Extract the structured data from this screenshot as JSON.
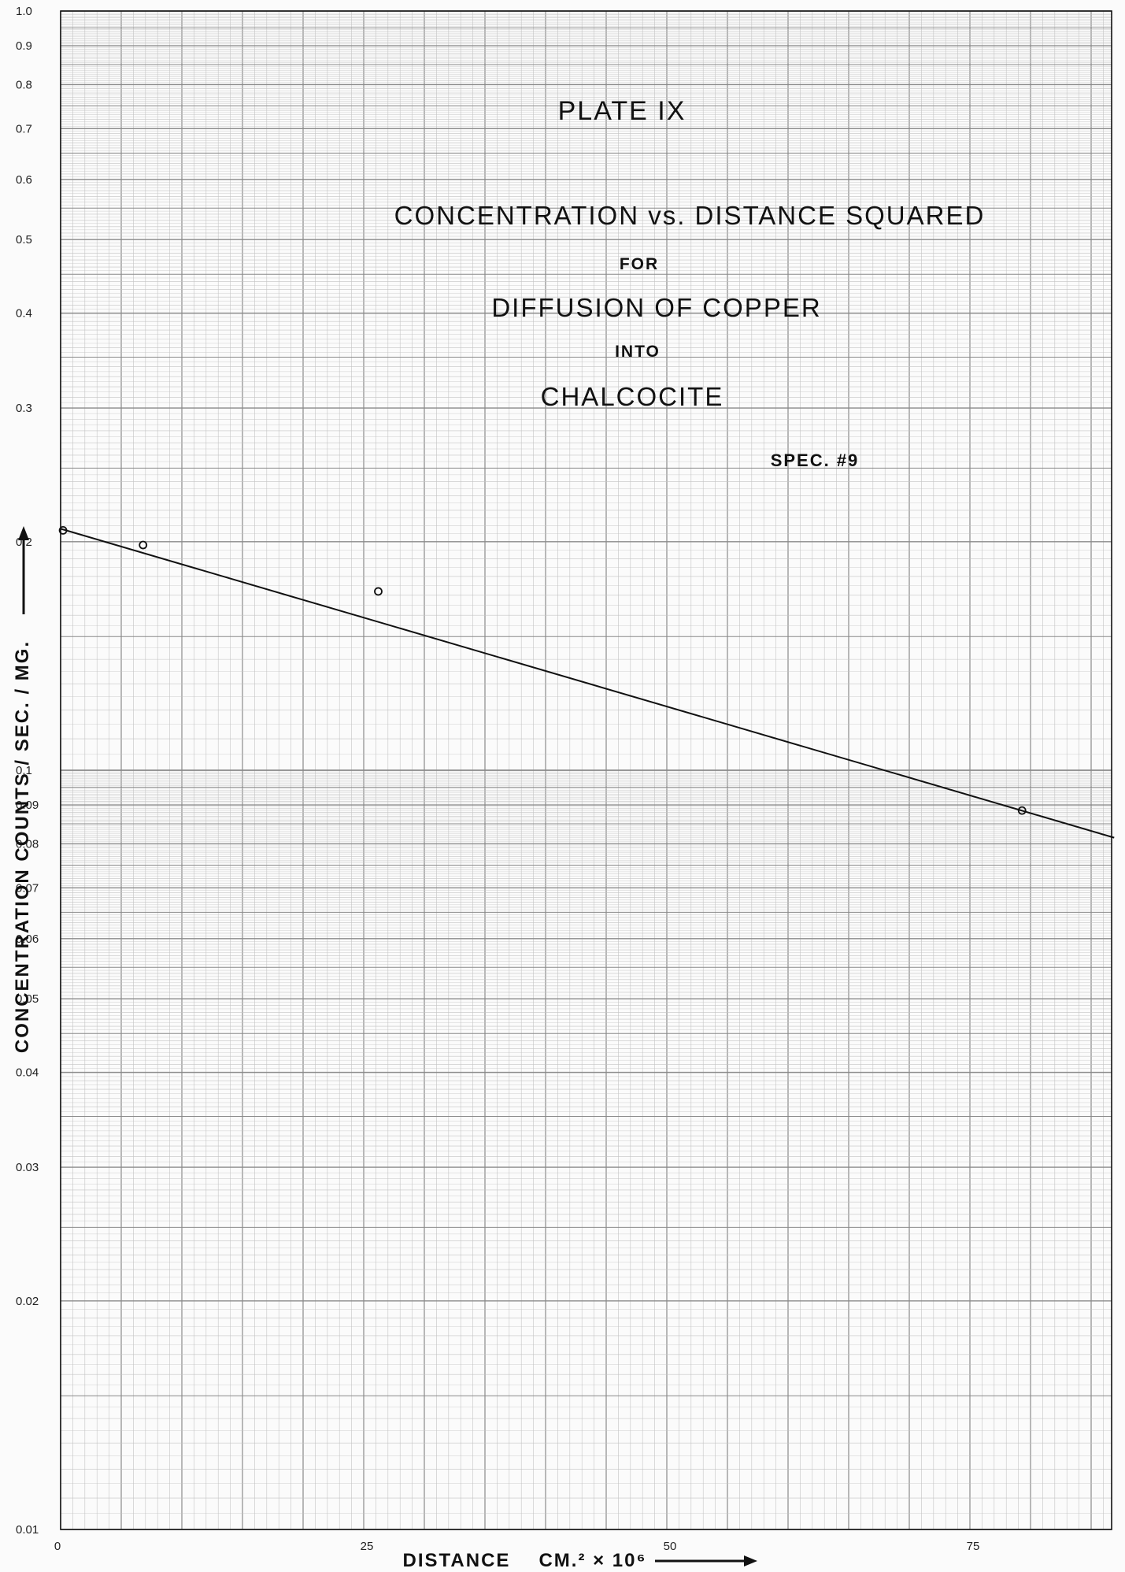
{
  "chart_data": {
    "type": "line",
    "y_scale": "log",
    "title_lines": [
      "PLATE IX",
      "CONCENTRATION vs. DISTANCE SQUARED",
      "FOR",
      "DIFFUSION OF COPPER",
      "INTO",
      "CHALCOCITE"
    ],
    "spec_label": "SPEC. #9",
    "xlabel": "DISTANCE",
    "xlabel_units": "CM.² × 10⁶",
    "ylabel": "CONCENTRATION   COUNTS / SEC. / MG.",
    "xlim": [
      0,
      87
    ],
    "ylim": [
      0.01,
      1.0
    ],
    "x_ticks": [
      0,
      25,
      50,
      75
    ],
    "x_tick_labels": [
      "0",
      "25",
      "50",
      "75"
    ],
    "y_ticks": [
      1.0,
      0.9,
      0.8,
      0.7,
      0.6,
      0.5,
      0.4,
      0.3,
      0.2,
      0.1,
      0.09,
      0.08,
      0.07,
      0.06,
      0.05,
      0.04,
      0.03,
      0.02,
      0.01
    ],
    "y_tick_labels": [
      "1.0",
      "0.9",
      "0.8",
      "0.7",
      "0.6",
      "0.5",
      "0.4",
      "0.3",
      "0.2",
      "0.1",
      "0.09",
      "0.08",
      "0.07",
      "0.06",
      "0.05",
      "0.04",
      "0.03",
      "0.02",
      "0.01"
    ],
    "grid": true,
    "series": [
      {
        "points": [
          {
            "x": 0.2,
            "y": 0.207
          },
          {
            "x": 6.8,
            "y": 0.198
          },
          {
            "x": 26.2,
            "y": 0.172
          },
          {
            "x": 79.3,
            "y": 0.0885
          }
        ],
        "fit_line": [
          {
            "x": 0,
            "y": 0.208
          },
          {
            "x": 86.9,
            "y": 0.0815
          }
        ]
      }
    ],
    "colors": {
      "paper": "#fbfbfb",
      "grid_major": "#8a8a8a",
      "grid_minor": "#c4c4c4",
      "ink": "#111111"
    }
  }
}
